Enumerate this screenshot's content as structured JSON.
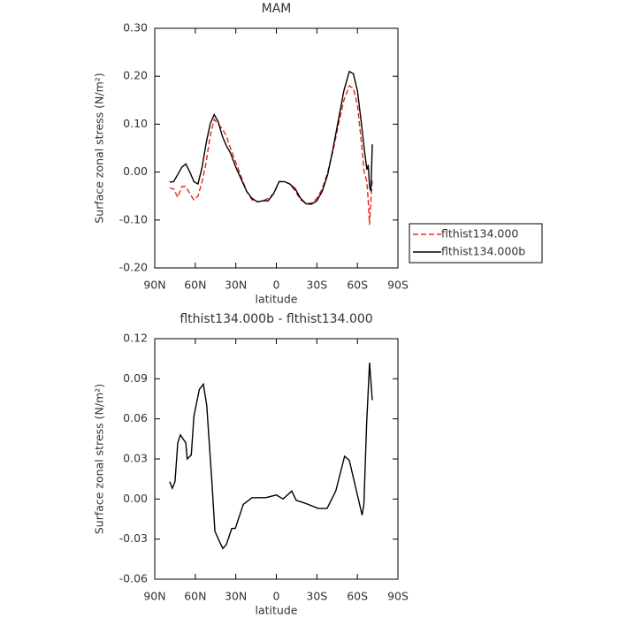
{
  "chart_data": [
    {
      "type": "line",
      "title": "MAM",
      "xlabel": "latitude",
      "ylabel": "Surface zonal stress (N/m²)",
      "x": [
        79,
        76,
        73,
        70,
        67,
        64,
        61,
        58,
        55,
        52,
        49,
        46,
        43,
        40,
        37,
        34,
        30,
        26,
        22,
        18,
        14,
        10,
        6,
        2,
        -2,
        -6,
        -10,
        -14,
        -18,
        -22,
        -26,
        -30,
        -34,
        -38,
        -42,
        -46,
        -50,
        -54,
        -57,
        -60,
        -63,
        -65,
        -67,
        -68,
        -69,
        -70,
        -71
      ],
      "series": [
        {
          "name": "flthist134.000",
          "color": "#e8231e",
          "linestyle": "dashed",
          "values": [
            -0.033,
            -0.035,
            -0.053,
            -0.03,
            -0.03,
            -0.045,
            -0.058,
            -0.05,
            -0.02,
            0.02,
            0.075,
            0.11,
            0.1,
            0.09,
            0.075,
            0.05,
            0.02,
            -0.01,
            -0.04,
            -0.058,
            -0.062,
            -0.06,
            -0.055,
            -0.045,
            -0.02,
            -0.02,
            -0.025,
            -0.04,
            -0.058,
            -0.065,
            -0.065,
            -0.055,
            -0.035,
            0.0,
            0.045,
            0.1,
            0.15,
            0.18,
            0.175,
            0.14,
            0.06,
            0.0,
            -0.02,
            -0.06,
            -0.11,
            -0.06,
            -0.015
          ]
        },
        {
          "name": "flthist134.000b",
          "color": "#000000",
          "linestyle": "solid",
          "values": [
            -0.021,
            -0.02,
            -0.005,
            0.01,
            0.017,
            0.0,
            -0.02,
            -0.025,
            0.01,
            0.06,
            0.1,
            0.12,
            0.105,
            0.075,
            0.055,
            0.04,
            0.01,
            -0.015,
            -0.04,
            -0.055,
            -0.062,
            -0.06,
            -0.06,
            -0.045,
            -0.02,
            -0.02,
            -0.025,
            -0.035,
            -0.055,
            -0.066,
            -0.067,
            -0.06,
            -0.04,
            -0.005,
            0.05,
            0.11,
            0.17,
            0.21,
            0.205,
            0.17,
            0.1,
            0.05,
            0.005,
            0.015,
            -0.03,
            -0.04,
            0.058
          ]
        }
      ],
      "xlim": [
        90,
        -90
      ],
      "xticks": [
        {
          "value": 90,
          "label": "90N"
        },
        {
          "value": 60,
          "label": "60N"
        },
        {
          "value": 30,
          "label": "30N"
        },
        0,
        {
          "value": -30,
          "label": "30S"
        },
        {
          "value": -60,
          "label": "60S"
        },
        {
          "value": -90,
          "label": "90S"
        }
      ],
      "ylim": [
        -0.2,
        0.3
      ],
      "yticks": [
        {
          "value": -0.2,
          "label": "-0.20"
        },
        {
          "value": -0.1,
          "label": "-0.10"
        },
        {
          "value": 0,
          "label": "0.00"
        },
        {
          "value": 0.1,
          "label": "0.10"
        },
        {
          "value": 0.2,
          "label": "0.20"
        },
        {
          "value": 0.3,
          "label": "0.30"
        }
      ],
      "legend": "right"
    },
    {
      "type": "line",
      "title": "flthist134.000b - flthist134.000",
      "xlabel": "latitude",
      "ylabel": "Surface zonal stress (N/m²)",
      "x": [
        79,
        77,
        75,
        73,
        71,
        67,
        66,
        63,
        61,
        57,
        54,
        51.5,
        47.5,
        45.5,
        42,
        39.6,
        37,
        33,
        30.4,
        24.5,
        18,
        8,
        0,
        -5,
        -11.4,
        -14.7,
        -21,
        -31,
        -37.6,
        -44,
        -50.5,
        -54,
        -57,
        -60,
        -63.5,
        -64.8,
        -66.8,
        -69,
        -71
      ],
      "color": "#000000",
      "linestyle": "solid",
      "values": [
        0.013,
        0.008,
        0.013,
        0.042,
        0.048,
        0.042,
        0.03,
        0.033,
        0.062,
        0.082,
        0.086,
        0.07,
        0.01,
        -0.024,
        -0.032,
        -0.037,
        -0.034,
        -0.022,
        -0.022,
        -0.004,
        0.001,
        0.001,
        0.003,
        0.0,
        0.006,
        -0.001,
        -0.003,
        -0.007,
        -0.007,
        0.006,
        0.032,
        0.029,
        0.016,
        0.003,
        -0.012,
        -0.004,
        0.056,
        0.102,
        0.074
      ],
      "xlim": [
        90,
        -90
      ],
      "xticks": [
        {
          "value": 90,
          "label": "90N"
        },
        {
          "value": 60,
          "label": "60N"
        },
        {
          "value": 30,
          "label": "30N"
        },
        0,
        {
          "value": -30,
          "label": "30S"
        },
        {
          "value": -60,
          "label": "60S"
        },
        {
          "value": -90,
          "label": "90S"
        }
      ],
      "ylim": [
        -0.06,
        0.12
      ],
      "yticks": [
        {
          "value": -0.06,
          "label": "-0.06"
        },
        {
          "value": -0.03,
          "label": "-0.03"
        },
        {
          "value": 0,
          "label": "0.00"
        },
        {
          "value": 0.03,
          "label": "0.03"
        },
        {
          "value": 0.06,
          "label": "0.06"
        },
        {
          "value": 0.09,
          "label": "0.09"
        },
        {
          "value": 0.12,
          "label": "0.12"
        }
      ]
    }
  ]
}
